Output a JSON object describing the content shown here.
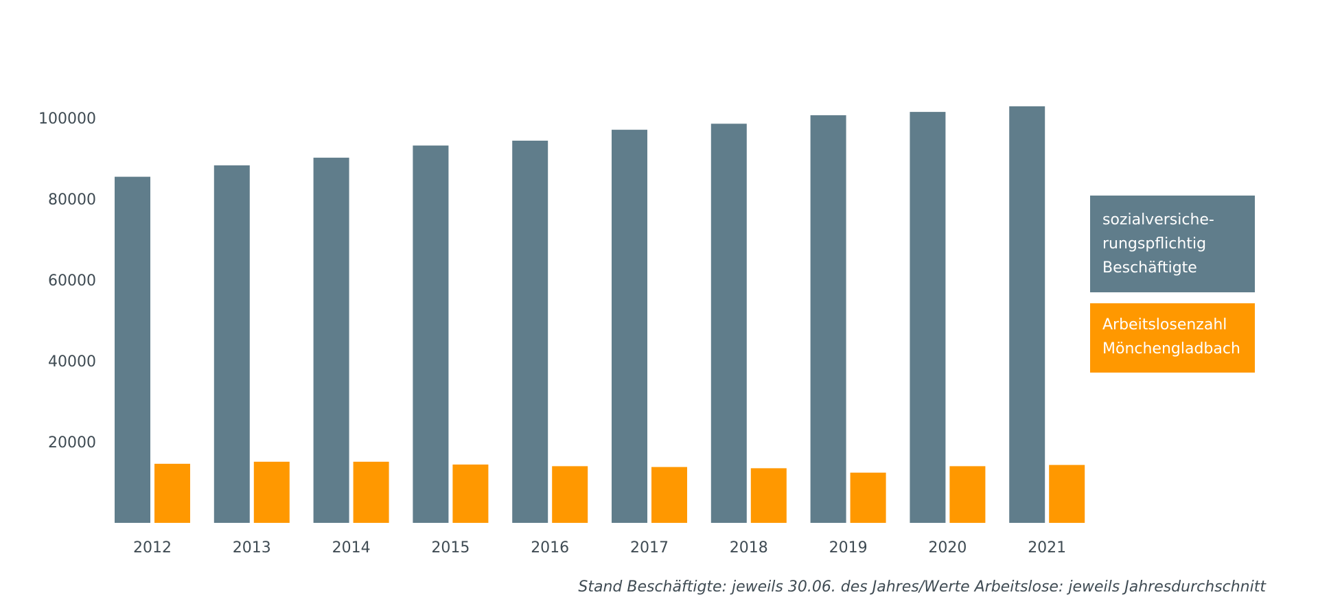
{
  "colors": {
    "employees": "#607d8b",
    "unemployed": "#ff9800",
    "text": "#3f4b53"
  },
  "chart_data": {
    "type": "bar",
    "categories": [
      "2012",
      "2013",
      "2014",
      "2015",
      "2016",
      "2017",
      "2018",
      "2019",
      "2020",
      "2021"
    ],
    "series": [
      {
        "name": "sozialversiche-rungspflichtig Beschäftigte",
        "values": [
          85500,
          88300,
          90200,
          93200,
          94400,
          97100,
          98600,
          100700,
          101500,
          102900
        ]
      },
      {
        "name": "Arbeitslosenzahl Mönchengladbach",
        "values": [
          14600,
          15100,
          15100,
          14400,
          14000,
          13800,
          13500,
          12400,
          14000,
          14300
        ]
      }
    ],
    "yticks": [
      "100000",
      "80000",
      "60000",
      "40000",
      "20000"
    ],
    "ylim": [
      0,
      105000
    ],
    "grid": false,
    "legend_position": "right",
    "title": "",
    "xlabel": "",
    "ylabel": ""
  },
  "legend": {
    "employees_lines": [
      "sozialversiche-",
      "rungspflichtig",
      "Beschäftigte"
    ],
    "unemployed_lines": [
      "Arbeitslosenzahl",
      "Mönchengladbach"
    ]
  },
  "footnote": "Stand Beschäftigte: jeweils 30.06. des Jahres/Werte Arbeitslose: jeweils Jahresdurchschnitt"
}
